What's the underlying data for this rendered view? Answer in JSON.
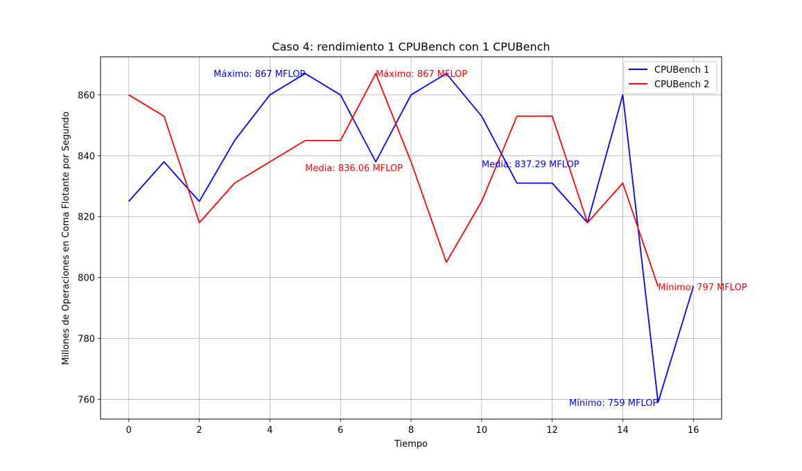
{
  "chart_data": {
    "type": "line",
    "title": "Caso 4: rendimiento 1 CPUBench con 1 CPUBench",
    "xlabel": "Tiempo",
    "ylabel": "Millones de Operaciones en Coma Flotante por Segundo",
    "x": [
      0,
      1,
      2,
      3,
      4,
      5,
      6,
      7,
      8,
      9,
      10,
      11,
      12,
      13,
      14,
      15,
      16
    ],
    "xlim": [
      -0.8,
      16.8
    ],
    "ylim": [
      753.5,
      872.5
    ],
    "xticks": [
      0,
      2,
      4,
      6,
      8,
      10,
      12,
      14,
      16
    ],
    "yticks": [
      760,
      780,
      800,
      820,
      840,
      860
    ],
    "grid": true,
    "legend_position": "top-right",
    "series": [
      {
        "name": "CPUBench 1",
        "color": "#0000ff",
        "values": [
          825,
          838,
          825,
          845,
          860,
          867,
          860,
          838,
          860,
          867,
          853,
          831,
          831,
          818,
          860,
          759,
          797
        ]
      },
      {
        "name": "CPUBench 2",
        "color": "#ff0000",
        "values": [
          860,
          853,
          818,
          831,
          838,
          845,
          845,
          867,
          838,
          805,
          825,
          853,
          853,
          818,
          831,
          797,
          null
        ]
      }
    ],
    "annotations": [
      {
        "text": "Máximo: 867 MFLOP",
        "x": 5,
        "y": 867,
        "color": "#0000ff",
        "anchor": "end"
      },
      {
        "text": "Máximo: 867 MFLOP",
        "x": 7,
        "y": 867,
        "color": "#ff0000",
        "anchor": "start"
      },
      {
        "text": "Media: 836.06 MFLOP",
        "x": 5,
        "y": 836.06,
        "color": "#ff0000",
        "anchor": "start"
      },
      {
        "text": "Media: 837.29 MFLOP",
        "x": 10,
        "y": 837.29,
        "color": "#0000ff",
        "anchor": "start"
      },
      {
        "text": "Mínimo: 797 MFLOP",
        "x": 15,
        "y": 797,
        "color": "#ff0000",
        "anchor": "start"
      },
      {
        "text": "Mínimo: 759 MFLOP",
        "x": 15,
        "y": 759,
        "color": "#0000ff",
        "anchor": "end"
      }
    ]
  }
}
